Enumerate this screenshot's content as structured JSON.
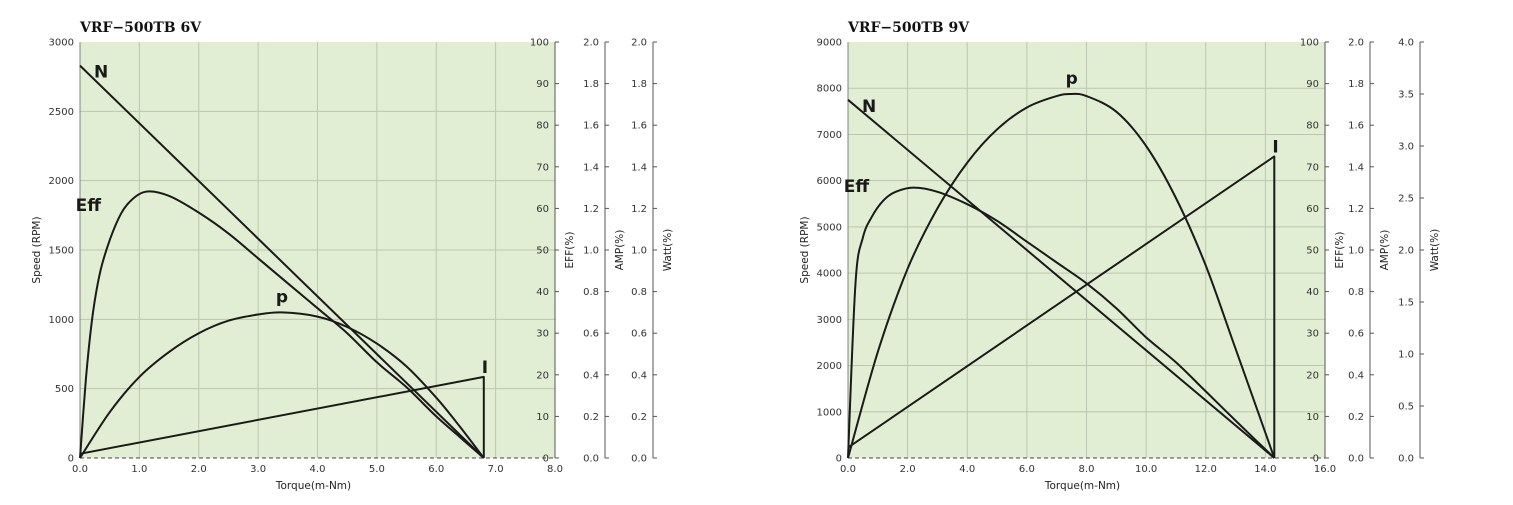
{
  "colors": {
    "plot_bg": "#e2eed3",
    "grid": "#bcc6b0",
    "curve": "#1a1a1a",
    "axis": "#555555"
  },
  "chart_data": [
    {
      "type": "line",
      "title": "VRF−500TB    6V",
      "xlabel": "Torque(m-Nm)",
      "grid": true,
      "xlim": [
        0,
        8
      ],
      "x_ticks": [
        "0.0",
        "1.0",
        "2.0",
        "3.0",
        "4.0",
        "5.0",
        "6.0",
        "7.0",
        "8.0"
      ],
      "y_axes": [
        {
          "label": "Speed (RPM)",
          "min": 0,
          "max": 3000,
          "ticks": [
            "0",
            "500",
            "1000",
            "1500",
            "2000",
            "2500",
            "3000"
          ]
        },
        {
          "label": "EFF(%)",
          "min": 0,
          "max": 100,
          "ticks": [
            "0",
            "10",
            "20",
            "30",
            "40",
            "50",
            "60",
            "70",
            "80",
            "90",
            "100"
          ]
        },
        {
          "label": "AMP(%)",
          "min": 0,
          "max": 2.0,
          "ticks": [
            "0.0",
            "0.2",
            "0.4",
            "0.6",
            "0.8",
            "1.0",
            "1.2",
            "1.4",
            "1.6",
            "1.8",
            "2.0"
          ]
        },
        {
          "label": "Watt(%)",
          "min": 0,
          "max": 2.0,
          "ticks": [
            "0.0",
            "0.2",
            "0.4",
            "0.6",
            "0.8",
            "1.0",
            "1.2",
            "1.4",
            "1.6",
            "1.8",
            "2.0"
          ]
        }
      ],
      "series": [
        {
          "name": "N",
          "axis": 0,
          "x": [
            0,
            6.8
          ],
          "y": [
            2830,
            0
          ]
        },
        {
          "name": "Eff",
          "axis": 1,
          "x": [
            0,
            0.1,
            0.2,
            0.3,
            0.4,
            0.6,
            0.8,
            1.1,
            1.5,
            2.0,
            2.5,
            3.0,
            3.5,
            4.0,
            4.5,
            5.0,
            5.5,
            6.0,
            6.4,
            6.8
          ],
          "y": [
            0,
            19,
            33,
            42,
            48,
            56,
            61,
            64,
            63,
            59,
            54,
            48,
            42,
            36,
            30,
            23,
            17,
            10,
            5,
            0
          ]
        },
        {
          "name": "p",
          "axis": 3,
          "x": [
            0,
            0.5,
            1.0,
            1.5,
            2.0,
            2.5,
            3.0,
            3.4,
            4.0,
            4.5,
            5.0,
            5.5,
            6.0,
            6.4,
            6.8
          ],
          "y": [
            0,
            0.22,
            0.39,
            0.51,
            0.6,
            0.66,
            0.69,
            0.7,
            0.68,
            0.63,
            0.55,
            0.44,
            0.29,
            0.15,
            0
          ]
        },
        {
          "name": "I",
          "axis": 2,
          "x": [
            0,
            6.8,
            6.8
          ],
          "y": [
            0.02,
            0.39,
            0
          ]
        }
      ]
    },
    {
      "type": "line",
      "title": "VRF−500TB    9V",
      "xlabel": "Torque(m-Nm)",
      "grid": true,
      "xlim": [
        0,
        16
      ],
      "x_ticks": [
        "0.0",
        "2.0",
        "4.0",
        "6.0",
        "8.0",
        "10.0",
        "12.0",
        "14.0",
        "16.0"
      ],
      "y_axes": [
        {
          "label": "Speed (RPM)",
          "min": 0,
          "max": 9000,
          "ticks": [
            "0",
            "1000",
            "2000",
            "3000",
            "4000",
            "5000",
            "6000",
            "7000",
            "8000",
            "9000"
          ]
        },
        {
          "label": "EFF(%)",
          "min": 0,
          "max": 100,
          "ticks": [
            "0",
            "10",
            "20",
            "30",
            "40",
            "50",
            "60",
            "70",
            "80",
            "90",
            "100"
          ]
        },
        {
          "label": "AMP(%)",
          "min": 0,
          "max": 2.0,
          "ticks": [
            "0.0",
            "0.2",
            "0.4",
            "0.6",
            "0.8",
            "1.0",
            "1.2",
            "1.4",
            "1.6",
            "1.8",
            "2.0"
          ]
        },
        {
          "label": "Watt(%)",
          "min": 0,
          "max": 4.0,
          "ticks": [
            "0.0",
            "0.5",
            "1.0",
            "1.5",
            "2.0",
            "2.5",
            "3.0",
            "3.5",
            "4.0"
          ]
        }
      ],
      "series": [
        {
          "name": "N",
          "axis": 0,
          "x": [
            0,
            14.3
          ],
          "y": [
            7750,
            0
          ]
        },
        {
          "name": "Eff",
          "axis": 1,
          "x": [
            0,
            0.25,
            0.5,
            0.8,
            1.2,
            1.6,
            2.2,
            3.0,
            4.0,
            5.0,
            6.0,
            7.0,
            8.0,
            9.0,
            10.0,
            11.0,
            12.0,
            13.0,
            14.3
          ],
          "y": [
            0,
            42,
            53,
            58,
            62,
            64,
            65,
            64,
            61,
            57,
            52,
            47,
            42,
            36,
            29,
            23,
            16,
            9,
            0
          ]
        },
        {
          "name": "p",
          "axis": 3,
          "x": [
            0,
            1.0,
            2.0,
            3.0,
            4.0,
            5.0,
            6.0,
            7.0,
            7.5,
            8.0,
            9.0,
            10.0,
            11.0,
            12.0,
            13.0,
            14.3
          ],
          "y": [
            0,
            1.02,
            1.82,
            2.4,
            2.84,
            3.16,
            3.37,
            3.48,
            3.5,
            3.48,
            3.33,
            3.0,
            2.5,
            1.85,
            1.05,
            0
          ]
        },
        {
          "name": "I",
          "axis": 2,
          "x": [
            0,
            14.3,
            14.3
          ],
          "y": [
            0.05,
            1.45,
            0
          ]
        }
      ]
    }
  ]
}
